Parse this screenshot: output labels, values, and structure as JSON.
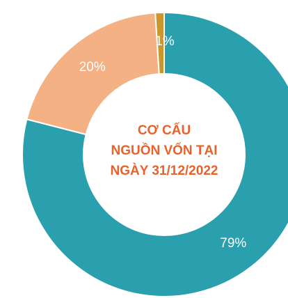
{
  "chart_data": {
    "type": "donut",
    "title_lines": [
      "CƠ CẤU",
      "NGUỒN VỐN TẠI",
      "NGÀY 31/12/2022"
    ],
    "values": [
      79,
      20,
      1
    ],
    "value_labels": [
      "79%",
      "20%",
      "1%"
    ],
    "colors": [
      "#2a9fae",
      "#f4b183",
      "#c9972c"
    ]
  }
}
